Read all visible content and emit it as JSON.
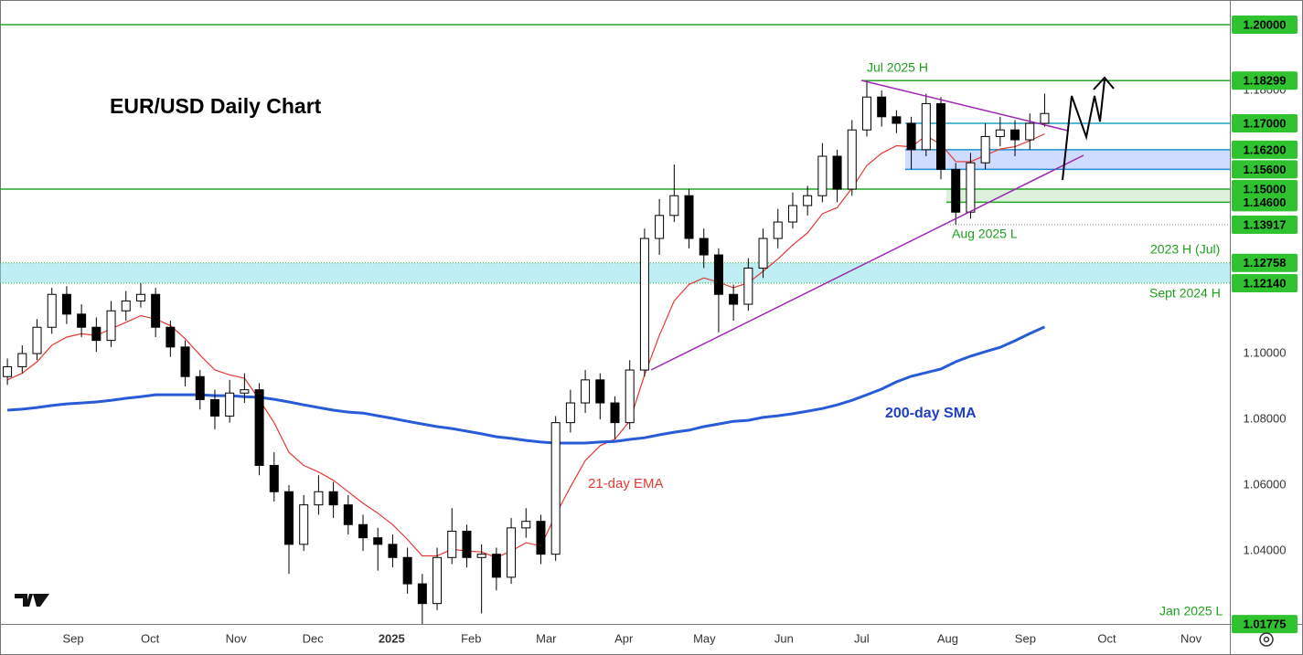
{
  "chart_data": {
    "type": "candlestick",
    "title": "EUR/USD Daily Chart",
    "candles": {
      "open": [
        1.093,
        1.096,
        1.1,
        1.108,
        1.118,
        1.112,
        1.108,
        1.104,
        1.113,
        1.116,
        1.118,
        1.108,
        1.102,
        1.093,
        1.086,
        1.081,
        1.088,
        1.089,
        1.066,
        1.058,
        1.042,
        1.054,
        1.058,
        1.054,
        1.048,
        1.044,
        1.042,
        1.038,
        1.03,
        1.024,
        1.038,
        1.046,
        1.038,
        1.039,
        1.032,
        1.047,
        1.049,
        1.039,
        1.079,
        1.085,
        1.092,
        1.085,
        1.079,
        1.095,
        1.135,
        1.142,
        1.148,
        1.135,
        1.13,
        1.118,
        1.115,
        1.126,
        1.135,
        1.14,
        1.145,
        1.148,
        1.16,
        1.15,
        1.168,
        1.178,
        1.172,
        1.17,
        1.162,
        1.176,
        1.156,
        1.143,
        1.158,
        1.166,
        1.168,
        1.165,
        1.17
      ],
      "high": [
        1.0985,
        1.1025,
        1.1105,
        1.12,
        1.1205,
        1.115,
        1.111,
        1.116,
        1.119,
        1.1214,
        1.12,
        1.11,
        1.104,
        1.095,
        1.089,
        1.092,
        1.094,
        1.091,
        1.07,
        1.06,
        1.057,
        1.063,
        1.061,
        1.057,
        1.051,
        1.047,
        1.045,
        1.041,
        1.033,
        1.041,
        1.053,
        1.048,
        1.042,
        1.041,
        1.05,
        1.053,
        1.051,
        1.081,
        1.089,
        1.095,
        1.094,
        1.087,
        1.098,
        1.138,
        1.147,
        1.1575,
        1.15,
        1.138,
        1.132,
        1.121,
        1.129,
        1.138,
        1.144,
        1.149,
        1.151,
        1.164,
        1.162,
        1.171,
        1.183,
        1.18,
        1.174,
        1.172,
        1.179,
        1.178,
        1.158,
        1.161,
        1.17,
        1.172,
        1.171,
        1.173,
        1.179
      ],
      "low": [
        1.0905,
        1.094,
        1.098,
        1.106,
        1.109,
        1.105,
        1.1005,
        1.102,
        1.11,
        1.114,
        1.105,
        1.099,
        1.09,
        1.083,
        1.077,
        1.079,
        1.085,
        1.063,
        1.055,
        1.033,
        1.04,
        1.051,
        1.05,
        1.045,
        1.04,
        1.034,
        1.035,
        1.027,
        1.0178,
        1.022,
        1.036,
        1.035,
        1.021,
        1.028,
        1.03,
        1.044,
        1.036,
        1.037,
        1.076,
        1.082,
        1.08,
        1.074,
        1.077,
        1.093,
        1.13,
        1.14,
        1.132,
        1.126,
        1.1065,
        1.11,
        1.113,
        1.123,
        1.132,
        1.138,
        1.142,
        1.146,
        1.146,
        1.148,
        1.166,
        1.169,
        1.167,
        1.156,
        1.16,
        1.153,
        1.1392,
        1.141,
        1.156,
        1.163,
        1.16,
        1.162,
        1.169
      ],
      "close": [
        1.096,
        1.1,
        1.108,
        1.118,
        1.112,
        1.108,
        1.104,
        1.113,
        1.116,
        1.118,
        1.108,
        1.102,
        1.093,
        1.086,
        1.081,
        1.088,
        1.089,
        1.066,
        1.058,
        1.042,
        1.054,
        1.058,
        1.054,
        1.048,
        1.044,
        1.042,
        1.038,
        1.03,
        1.024,
        1.038,
        1.046,
        1.038,
        1.039,
        1.032,
        1.047,
        1.049,
        1.039,
        1.079,
        1.085,
        1.092,
        1.085,
        1.079,
        1.095,
        1.135,
        1.142,
        1.148,
        1.135,
        1.13,
        1.118,
        1.115,
        1.126,
        1.135,
        1.14,
        1.145,
        1.148,
        1.16,
        1.15,
        1.168,
        1.178,
        1.172,
        1.17,
        1.162,
        1.176,
        1.156,
        1.143,
        1.158,
        1.166,
        1.168,
        1.165,
        1.17,
        1.173
      ],
      "up_color": "#ffffff",
      "down_color": "#000000",
      "edge_color": "#000000"
    },
    "series": [
      {
        "name": "21-day EMA",
        "color": "#e53935",
        "width": 1.2,
        "values": [
          1.092,
          1.094,
          1.0975,
          1.1025,
          1.105,
          1.106,
          1.1055,
          1.1075,
          1.1095,
          1.1115,
          1.1105,
          1.1085,
          1.1045,
          1.0995,
          1.095,
          1.0935,
          1.0925,
          1.086,
          1.079,
          1.07,
          1.066,
          1.064,
          1.0615,
          1.058,
          1.0545,
          1.0515,
          1.048,
          1.0435,
          1.0385,
          1.0385,
          1.0405,
          1.04,
          1.0397,
          1.038,
          1.04,
          1.0425,
          1.0415,
          1.051,
          1.0595,
          1.0675,
          1.072,
          1.074,
          1.0795,
          1.0935,
          1.1055,
          1.116,
          1.121,
          1.123,
          1.1217,
          1.12,
          1.1215,
          1.125,
          1.1288,
          1.133,
          1.1367,
          1.1425,
          1.1444,
          1.1503,
          1.1572,
          1.1609,
          1.1632,
          1.1629,
          1.1662,
          1.1636,
          1.1584,
          1.1583,
          1.1603,
          1.1622,
          1.1629,
          1.1647,
          1.1668
        ]
      },
      {
        "name": "200-day SMA",
        "color": "#2a5bd7",
        "width": 3,
        "values": [
          1.0828,
          1.0831,
          1.0836,
          1.0842,
          1.0847,
          1.085,
          1.0853,
          1.0858,
          1.0864,
          1.0869,
          1.0875,
          1.0875,
          1.0875,
          1.0875,
          1.0872,
          1.0872,
          1.0869,
          1.0867,
          1.0861,
          1.0853,
          1.0844,
          1.0836,
          1.0828,
          1.0822,
          1.0819,
          1.0811,
          1.0803,
          1.0794,
          1.0786,
          1.0778,
          1.0772,
          1.0764,
          1.0756,
          1.0747,
          1.0742,
          1.0736,
          1.0731,
          1.0728,
          1.0728,
          1.0728,
          1.0731,
          1.0733,
          1.0739,
          1.0744,
          1.0753,
          1.0761,
          1.0767,
          1.0778,
          1.0786,
          1.0794,
          1.0797,
          1.0806,
          1.0811,
          1.0817,
          1.0825,
          1.0833,
          1.0844,
          1.0858,
          1.0875,
          1.0892,
          1.0914,
          1.0931,
          1.0942,
          1.0953,
          1.0975,
          1.0992,
          1.1006,
          1.1019,
          1.1039,
          1.1061,
          1.1081
        ]
      }
    ],
    "xlim": [
      -0.5,
      82.5
    ],
    "xticks": [
      {
        "value": 4.44,
        "label": "Sep"
      },
      {
        "value": 9.63,
        "label": "Oct"
      },
      {
        "value": 15.43,
        "label": "Nov"
      },
      {
        "value": 20.62,
        "label": "Dec"
      },
      {
        "value": 25.93,
        "label": "2025"
      },
      {
        "value": 31.3,
        "label": "Feb"
      },
      {
        "value": 36.36,
        "label": "Mar"
      },
      {
        "value": 41.6,
        "label": "Apr"
      },
      {
        "value": 47.04,
        "label": "May"
      },
      {
        "value": 52.41,
        "label": "Jun"
      },
      {
        "value": 57.65,
        "label": "Jul"
      },
      {
        "value": 63.46,
        "label": "Aug"
      },
      {
        "value": 68.7,
        "label": "Sep"
      },
      {
        "value": 74.2,
        "label": "Oct"
      },
      {
        "value": 79.88,
        "label": "Nov"
      }
    ],
    "ylim": [
      1.0178,
      1.2075
    ],
    "yticks": [
      {
        "value": 1.04,
        "label": "1.04000"
      },
      {
        "value": 1.06,
        "label": "1.06000"
      },
      {
        "value": 1.08,
        "label": "1.08000"
      },
      {
        "value": 1.1,
        "label": "1.10000"
      },
      {
        "value": 1.18,
        "label": "1.18000"
      }
    ],
    "levels": [
      {
        "value": 1.2,
        "label": "1.20000",
        "color": "#26a626"
      },
      {
        "value": 1.18299,
        "label": "1.18299",
        "color": "#26a626"
      },
      {
        "value": 1.17,
        "label": "1.17000",
        "color": "#1aa3c8"
      },
      {
        "value": 1.162,
        "label": "1.16200",
        "color": "#1a8fd6"
      },
      {
        "value": 1.156,
        "label": "1.15600",
        "color": "#1a8fd6"
      },
      {
        "value": 1.15,
        "label": "1.15000",
        "color": "#26a626"
      },
      {
        "value": 1.146,
        "label": "1.14600",
        "color": "#26a626"
      },
      {
        "value": 1.13917,
        "label": "1.13917",
        "color": "#888888",
        "dashed": true
      },
      {
        "value": 1.12758,
        "label": "1.12758",
        "color": "#26a626",
        "dashed": true
      },
      {
        "value": 1.1214,
        "label": "1.12140",
        "color": "#26a626",
        "dashed": true
      },
      {
        "value": 1.01775,
        "label": "1.01775",
        "color": "#26a626",
        "line": false
      }
    ],
    "tag_color": "#2fc42f",
    "annotations": [
      "Jul 2025 H",
      "Aug 2025 L",
      "2023 H (Jul)",
      "Sept 2024 H",
      "Jan 2025 L"
    ]
  }
}
